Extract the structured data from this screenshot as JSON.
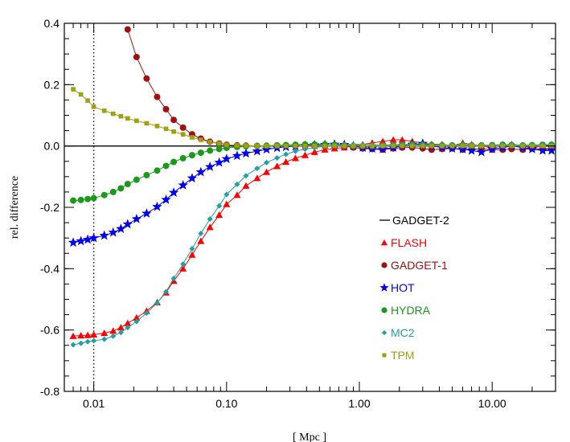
{
  "chart_data": {
    "type": "scatter",
    "title": "",
    "xlabel": "[ Mpc ]",
    "ylabel": "rel. difference",
    "xscale": "log",
    "xlim": [
      0.006,
      30
    ],
    "ylim": [
      -0.8,
      0.4
    ],
    "x_ticks": [
      0.01,
      0.1,
      1,
      10
    ],
    "x_tick_labels": [
      "0.01",
      "0.10",
      "1.00",
      "10.00"
    ],
    "y_ticks": [
      -0.8,
      -0.6,
      -0.4,
      -0.2,
      0.0,
      0.2,
      0.4
    ],
    "y_tick_labels": [
      "-0.8",
      "-0.6",
      "-0.4",
      "-0.2",
      "0.0",
      "0.2",
      "0.4"
    ],
    "reference_line": {
      "y": 0.0,
      "name": "GADGET-2",
      "color": "#000000"
    },
    "vertical_line": {
      "x": 0.01,
      "style": "dotted"
    },
    "legend_position": "right",
    "grid": false,
    "series": [
      {
        "name": "FLASH",
        "color": "#ff0000",
        "marker": "triangle",
        "x": [
          0.007,
          0.008,
          0.009,
          0.01,
          0.012,
          0.014,
          0.016,
          0.018,
          0.021,
          0.025,
          0.03,
          0.035,
          0.04,
          0.047,
          0.055,
          0.064,
          0.075,
          0.088,
          0.1,
          0.12,
          0.14,
          0.17,
          0.2,
          0.24,
          0.28,
          0.33,
          0.39,
          0.46,
          0.55,
          0.65,
          0.77,
          0.9,
          1.06,
          1.25,
          1.5,
          1.8,
          2.1,
          2.5,
          3.0,
          3.5,
          4.2,
          5.0,
          6.0,
          7.0,
          8.3,
          10,
          12,
          14,
          17,
          20,
          24,
          28
        ],
        "y": [
          -0.62,
          -0.618,
          -0.617,
          -0.615,
          -0.61,
          -0.603,
          -0.592,
          -0.578,
          -0.56,
          -0.538,
          -0.51,
          -0.478,
          -0.44,
          -0.4,
          -0.355,
          -0.31,
          -0.265,
          -0.225,
          -0.19,
          -0.16,
          -0.13,
          -0.105,
          -0.085,
          -0.066,
          -0.052,
          -0.04,
          -0.03,
          -0.02,
          -0.012,
          -0.008,
          -0.005,
          0.0,
          0.005,
          0.01,
          0.015,
          0.02,
          0.02,
          0.015,
          0.01,
          0.005,
          0.005,
          0.0,
          0.01,
          0.005,
          0.0,
          -0.005,
          0.005,
          0.0,
          0.0,
          -0.005,
          0.0,
          0.005
        ]
      },
      {
        "name": "GADGET-1",
        "color": "#a01010",
        "marker": "circle",
        "x": [
          0.018,
          0.021,
          0.025,
          0.03,
          0.035,
          0.04,
          0.047,
          0.055,
          0.064,
          0.075,
          0.088,
          0.1,
          0.12,
          0.14,
          0.17,
          0.2,
          0.24,
          0.28,
          0.33,
          0.39,
          0.46,
          0.55,
          0.65,
          0.77,
          0.9,
          1.06,
          1.25,
          1.5,
          1.8,
          2.1,
          2.5,
          3.0,
          3.5,
          4.2,
          5.0,
          6.0,
          7.0,
          8.3,
          10,
          12,
          14,
          17,
          20,
          24,
          28
        ],
        "y": [
          0.38,
          0.29,
          0.22,
          0.16,
          0.12,
          0.085,
          0.06,
          0.038,
          0.024,
          0.014,
          0.008,
          0.004,
          0.002,
          0.001,
          0.0,
          0.0,
          0.0,
          0.0,
          0.0,
          0.0,
          0.0,
          0.0,
          0.0,
          0.0,
          -0.005,
          -0.008,
          -0.01,
          -0.012,
          -0.008,
          -0.005,
          -0.005,
          -0.008,
          -0.012,
          -0.01,
          -0.008,
          -0.012,
          -0.01,
          -0.01,
          -0.012,
          -0.012,
          -0.01,
          -0.012,
          -0.008,
          -0.01,
          -0.008
        ]
      },
      {
        "name": "HOT",
        "color": "#0000ee",
        "marker": "star",
        "x": [
          0.007,
          0.008,
          0.009,
          0.01,
          0.012,
          0.014,
          0.016,
          0.018,
          0.021,
          0.025,
          0.03,
          0.035,
          0.04,
          0.047,
          0.055,
          0.064,
          0.075,
          0.088,
          0.1,
          0.12,
          0.14,
          0.17,
          0.2,
          0.24,
          0.28,
          0.33,
          0.39,
          0.46,
          0.55,
          0.65,
          0.77,
          0.9,
          1.06,
          1.25,
          1.5,
          1.8,
          2.1,
          2.5,
          3.0,
          3.5,
          4.2,
          5.0,
          6.0,
          7.0,
          8.3,
          10,
          12,
          14,
          17,
          20,
          24,
          28
        ],
        "y": [
          -0.315,
          -0.31,
          -0.305,
          -0.3,
          -0.292,
          -0.282,
          -0.27,
          -0.255,
          -0.238,
          -0.22,
          -0.198,
          -0.175,
          -0.152,
          -0.128,
          -0.105,
          -0.085,
          -0.068,
          -0.054,
          -0.042,
          -0.032,
          -0.024,
          -0.017,
          -0.011,
          -0.006,
          -0.003,
          -0.001,
          0.001,
          0.003,
          0.004,
          0.005,
          0.004,
          0.0,
          -0.005,
          -0.008,
          -0.01,
          -0.005,
          0.0,
          0.005,
          0.008,
          0.0,
          -0.005,
          -0.008,
          -0.01,
          -0.015,
          -0.02,
          -0.01,
          -0.005,
          0.0,
          -0.005,
          -0.01,
          -0.015,
          -0.015
        ]
      },
      {
        "name": "HYDRA",
        "color": "#1a9a1a",
        "marker": "circle",
        "x": [
          0.007,
          0.008,
          0.009,
          0.01,
          0.012,
          0.014,
          0.016,
          0.018,
          0.021,
          0.025,
          0.03,
          0.035,
          0.04,
          0.047,
          0.055,
          0.064,
          0.075,
          0.088,
          0.1,
          0.12,
          0.14,
          0.17,
          0.2,
          0.24,
          0.28,
          0.33,
          0.39,
          0.46,
          0.55,
          0.65,
          0.77,
          0.9,
          1.06,
          1.25,
          1.5,
          1.8,
          2.1,
          2.5,
          3.0,
          3.5,
          4.2,
          5.0,
          6.0,
          7.0,
          8.3,
          10,
          12,
          14,
          17,
          20,
          24,
          28
        ],
        "y": [
          -0.178,
          -0.176,
          -0.173,
          -0.17,
          -0.16,
          -0.15,
          -0.138,
          -0.124,
          -0.11,
          -0.095,
          -0.08,
          -0.065,
          -0.052,
          -0.04,
          -0.03,
          -0.022,
          -0.015,
          -0.01,
          -0.006,
          -0.003,
          -0.001,
          0.0,
          0.001,
          0.002,
          0.003,
          0.004,
          0.005,
          0.005,
          0.005,
          0.004,
          0.002,
          0.0,
          0.0,
          0.0,
          0.002,
          0.003,
          0.004,
          0.005,
          0.004,
          0.003,
          0.002,
          0.002,
          0.003,
          0.002,
          0.002,
          0.003,
          0.004,
          0.003,
          0.002,
          0.003,
          0.004,
          0.004
        ]
      },
      {
        "name": "MC2",
        "color": "#20a0a0",
        "marker": "diamond",
        "x": [
          0.007,
          0.008,
          0.009,
          0.01,
          0.012,
          0.014,
          0.016,
          0.018,
          0.021,
          0.025,
          0.03,
          0.035,
          0.04,
          0.047,
          0.055,
          0.064,
          0.075,
          0.088,
          0.1,
          0.12,
          0.14,
          0.17,
          0.2,
          0.24,
          0.28,
          0.33,
          0.39,
          0.46,
          0.55,
          0.65,
          0.77,
          0.9,
          1.06,
          1.25,
          1.5,
          1.8,
          2.1,
          2.5,
          3.0,
          3.5,
          4.2,
          5.0,
          6.0,
          7.0,
          8.3,
          10,
          12,
          14,
          17,
          20,
          24,
          28
        ],
        "y": [
          -0.648,
          -0.643,
          -0.638,
          -0.635,
          -0.63,
          -0.62,
          -0.608,
          -0.592,
          -0.572,
          -0.545,
          -0.512,
          -0.475,
          -0.432,
          -0.385,
          -0.335,
          -0.285,
          -0.238,
          -0.195,
          -0.158,
          -0.125,
          -0.097,
          -0.073,
          -0.054,
          -0.039,
          -0.027,
          -0.017,
          -0.01,
          -0.005,
          -0.001,
          0.002,
          0.004,
          0.005,
          0.005,
          0.004,
          0.003,
          0.004,
          0.005,
          0.004,
          0.003,
          0.002,
          0.002,
          0.003,
          0.004,
          0.003,
          0.002,
          0.003,
          0.004,
          0.004,
          0.003,
          0.003,
          0.004,
          0.004
        ]
      },
      {
        "name": "TPM",
        "color": "#a0a010",
        "marker": "square",
        "x": [
          0.007,
          0.008,
          0.009,
          0.01,
          0.012,
          0.014,
          0.016,
          0.018,
          0.021,
          0.025,
          0.03,
          0.035,
          0.04,
          0.047,
          0.055,
          0.064,
          0.075,
          0.088,
          0.1,
          0.12,
          0.14,
          0.17,
          0.2,
          0.24,
          0.28,
          0.33,
          0.39,
          0.46,
          0.55,
          0.65,
          0.77,
          0.9,
          1.06,
          1.25,
          1.5,
          1.8,
          2.1,
          2.5,
          3.0,
          3.5,
          4.2,
          5.0,
          6.0,
          7.0,
          8.3,
          10,
          12,
          14,
          17,
          20,
          24,
          28
        ],
        "y": [
          0.185,
          0.168,
          0.148,
          0.128,
          0.115,
          0.105,
          0.097,
          0.09,
          0.082,
          0.074,
          0.065,
          0.056,
          0.047,
          0.038,
          0.028,
          0.02,
          0.013,
          0.008,
          0.004,
          0.002,
          0.001,
          0.0,
          0.0,
          0.0,
          0.0,
          0.0,
          0.0,
          0.0,
          0.0,
          0.0,
          0.0,
          0.0,
          0.0,
          0.0,
          0.0,
          0.0,
          0.0,
          0.0,
          0.0,
          0.0,
          0.0,
          0.0,
          0.0,
          0.0,
          0.0,
          0.0,
          0.0,
          0.0,
          0.0,
          0.0,
          0.0,
          0.0
        ]
      }
    ]
  }
}
